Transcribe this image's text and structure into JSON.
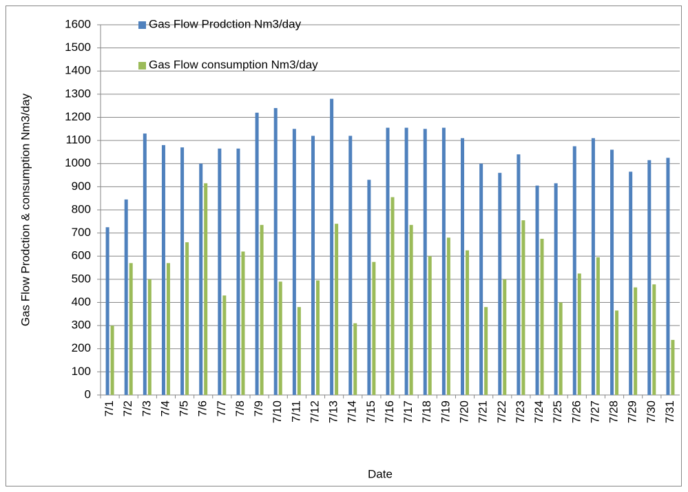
{
  "chart_data": {
    "type": "bar",
    "x_label": "Date",
    "y_label": "Gas Flow Prodction & consumption Nm3/day",
    "categories": [
      "7/1",
      "7/2",
      "7/3",
      "7/4",
      "7/5",
      "7/6",
      "7/7",
      "7/8",
      "7/9",
      "7/10",
      "7/11",
      "7/12",
      "7/13",
      "7/14",
      "7/15",
      "7/16",
      "7/17",
      "7/18",
      "7/19",
      "7/20",
      "7/21",
      "7/22",
      "7/23",
      "7/24",
      "7/25",
      "7/26",
      "7/27",
      "7/28",
      "7/29",
      "7/30",
      "7/31"
    ],
    "series": [
      {
        "name": "Gas Flow Prodction Nm3/day",
        "color": "#4f81bd",
        "values": [
          725,
          845,
          1130,
          1080,
          1070,
          1000,
          1065,
          1065,
          1220,
          1240,
          1150,
          1120,
          1280,
          1120,
          930,
          1155,
          1155,
          1150,
          1155,
          1110,
          1000,
          960,
          1040,
          905,
          915,
          1075,
          1110,
          1060,
          965,
          1015,
          1025
        ]
      },
      {
        "name": "Gas Flow consumption Nm3/day",
        "color": "#9bbb59",
        "values": [
          300,
          570,
          500,
          570,
          660,
          915,
          430,
          620,
          735,
          490,
          380,
          495,
          740,
          310,
          575,
          855,
          735,
          600,
          680,
          625,
          380,
          500,
          755,
          675,
          400,
          525,
          595,
          365,
          465,
          478,
          238
        ]
      }
    ],
    "ylim": [
      0,
      1600
    ],
    "yticks": [
      0,
      100,
      200,
      300,
      400,
      500,
      600,
      700,
      800,
      900,
      1000,
      1100,
      1200,
      1300,
      1400,
      1500,
      1600
    ],
    "grid": true,
    "legend": "top-left"
  }
}
